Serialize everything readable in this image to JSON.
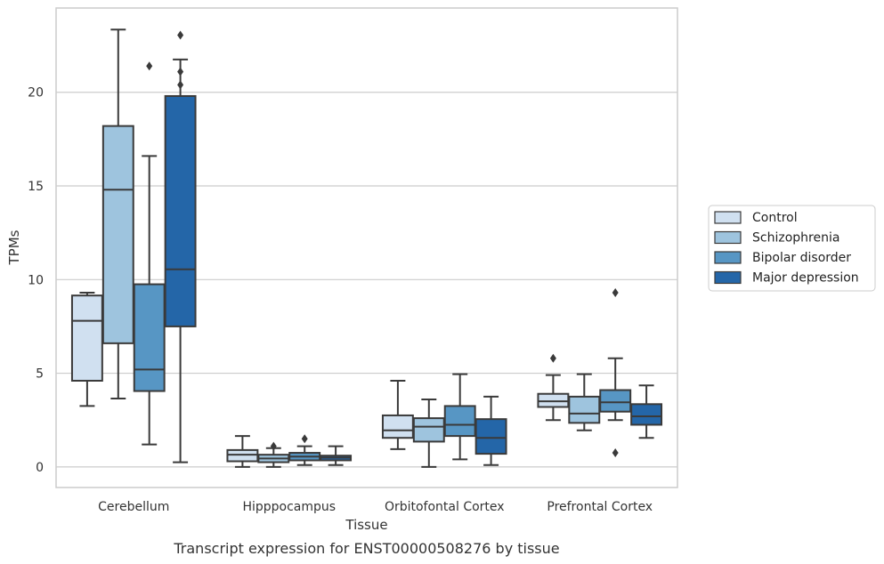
{
  "chart_data": {
    "type": "boxplot",
    "xlabel": "Tissue",
    "ylabel": "TPMs",
    "caption": "Transcript expression for ENST00000508276 by tissue",
    "ylim": [
      -1.1,
      24.5
    ],
    "yticks": [
      0,
      5,
      10,
      15,
      20
    ],
    "grid": "horizontal",
    "legend_position": "right",
    "categories": [
      "Cerebellum",
      "Hipppocampus",
      "Orbitofontal Cortex",
      "Prefrontal Cortex"
    ],
    "series": [
      {
        "name": "Control",
        "color": "#d0e0f0",
        "boxes": [
          {
            "whisker_low": 3.25,
            "q1": 4.6,
            "median": 7.8,
            "q3": 9.15,
            "whisker_high": 9.3,
            "outliers": []
          },
          {
            "whisker_low": 0.0,
            "q1": 0.3,
            "median": 0.65,
            "q3": 0.9,
            "whisker_high": 1.65,
            "outliers": []
          },
          {
            "whisker_low": 0.95,
            "q1": 1.55,
            "median": 1.95,
            "q3": 2.75,
            "whisker_high": 4.6,
            "outliers": []
          },
          {
            "whisker_low": 2.5,
            "q1": 3.2,
            "median": 3.5,
            "q3": 3.9,
            "whisker_high": 4.9,
            "outliers": [
              5.8
            ]
          }
        ]
      },
      {
        "name": "Schizophrenia",
        "color": "#9ec4de",
        "boxes": [
          {
            "whisker_low": 3.65,
            "q1": 6.6,
            "median": 14.8,
            "q3": 18.2,
            "whisker_high": 23.35,
            "outliers": []
          },
          {
            "whisker_low": 0.0,
            "q1": 0.25,
            "median": 0.45,
            "q3": 0.65,
            "whisker_high": 1.0,
            "outliers": [
              1.1
            ]
          },
          {
            "whisker_low": 0.0,
            "q1": 1.35,
            "median": 2.15,
            "q3": 2.6,
            "whisker_high": 3.6,
            "outliers": []
          },
          {
            "whisker_low": 1.95,
            "q1": 2.35,
            "median": 2.85,
            "q3": 3.75,
            "whisker_high": 4.95,
            "outliers": []
          }
        ]
      },
      {
        "name": "Bipolar disorder",
        "color": "#5796c4",
        "boxes": [
          {
            "whisker_low": 1.2,
            "q1": 4.05,
            "median": 5.2,
            "q3": 9.75,
            "whisker_high": 16.6,
            "outliers": [
              21.4
            ]
          },
          {
            "whisker_low": 0.1,
            "q1": 0.35,
            "median": 0.55,
            "q3": 0.75,
            "whisker_high": 1.1,
            "outliers": [
              1.5
            ]
          },
          {
            "whisker_low": 0.4,
            "q1": 1.65,
            "median": 2.25,
            "q3": 3.25,
            "whisker_high": 4.95,
            "outliers": []
          },
          {
            "whisker_low": 2.5,
            "q1": 2.95,
            "median": 3.45,
            "q3": 4.1,
            "whisker_high": 5.8,
            "outliers": [
              9.3,
              0.75
            ]
          }
        ]
      },
      {
        "name": "Major depression",
        "color": "#2466a8",
        "boxes": [
          {
            "whisker_low": 0.25,
            "q1": 7.5,
            "median": 10.55,
            "q3": 19.8,
            "whisker_high": 21.75,
            "outliers": [
              23.05,
              21.1,
              20.4
            ]
          },
          {
            "whisker_low": 0.1,
            "q1": 0.35,
            "median": 0.5,
            "q3": 0.6,
            "whisker_high": 1.1,
            "outliers": []
          },
          {
            "whisker_low": 0.1,
            "q1": 0.7,
            "median": 1.55,
            "q3": 2.55,
            "whisker_high": 3.75,
            "outliers": []
          },
          {
            "whisker_low": 1.55,
            "q1": 2.25,
            "median": 2.7,
            "q3": 3.35,
            "whisker_high": 4.35,
            "outliers": []
          }
        ]
      }
    ]
  }
}
